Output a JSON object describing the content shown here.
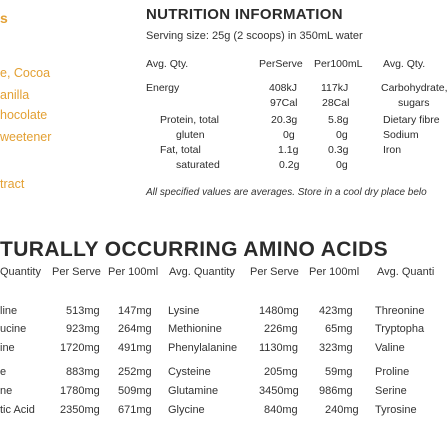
{
  "left_ingredients": [
    "s",
    "e, Cocoa",
    "anilla",
    "hocolate",
    "weetener",
    "tract"
  ],
  "nutrition": {
    "title": "NUTRITION INFORMATION",
    "serving": "Serving size: 25g (2 scoops) in 350mL water",
    "header": [
      "Avg. Qty.",
      "PerServe",
      "Per100mL",
      "Avg. Qty."
    ],
    "rows": [
      {
        "label": "Energy",
        "serve": "408kJ",
        "per100": "117kJ",
        "right": "Carbohydrate, to"
      },
      {
        "label": "",
        "serve": "97Cal",
        "per100": "28Cal",
        "right": "sugars"
      },
      {
        "label": "Protein, total",
        "serve": "20.3g",
        "per100": "5.8g",
        "right": "Dietary fibre"
      },
      {
        "label": "gluten",
        "serve": "0g",
        "per100": "0g",
        "right": "Sodium"
      },
      {
        "label": "Fat, total",
        "serve": "1.1g",
        "per100": "0.3g",
        "right": "Iron"
      },
      {
        "label": "saturated",
        "serve": "0.2g",
        "per100": "0g",
        "right": ""
      }
    ],
    "footnote": "All specified values are averages. Store in a cool dry place belo"
  },
  "amino": {
    "title": "TURALLY OCCURRING AMINO ACIDS",
    "header": [
      "Quantity",
      "Per Serve",
      "Per 100ml",
      "Avg. Quantity",
      "Per Serve",
      "Per 100ml",
      "Avg. Quanti"
    ],
    "rows": [
      {
        "n1": "line",
        "s1": "513mg",
        "p1": "147mg",
        "n2": "Lysine",
        "s2": "1480mg",
        "p2": "423mg",
        "n3": "Threonine"
      },
      {
        "n1": "ucine",
        "s1": "923mg",
        "p1": "264mg",
        "n2": "Methionine",
        "s2": "226mg",
        "p2": "65mg",
        "n3": "Tryptopha"
      },
      {
        "n1": "ine",
        "s1": "1720mg",
        "p1": "491mg",
        "n2": "Phenylalanine",
        "s2": "1130mg",
        "p2": "323mg",
        "n3": "Valine"
      },
      {
        "n1": "e",
        "s1": "883mg",
        "p1": "252mg",
        "n2": "Cysteine",
        "s2": "205mg",
        "p2": "59mg",
        "n3": "Proline"
      },
      {
        "n1": "ne",
        "s1": "1780mg",
        "p1": "509mg",
        "n2": "Glutamine",
        "s2": "3450mg",
        "p2": "986mg",
        "n3": "Serine"
      },
      {
        "n1": "tic Acid",
        "s1": "2350mg",
        "p1": "671mg",
        "n2": "Glycine",
        "s2": "840mg",
        "p2": "240mg",
        "n3": "Tyrosine"
      }
    ]
  }
}
